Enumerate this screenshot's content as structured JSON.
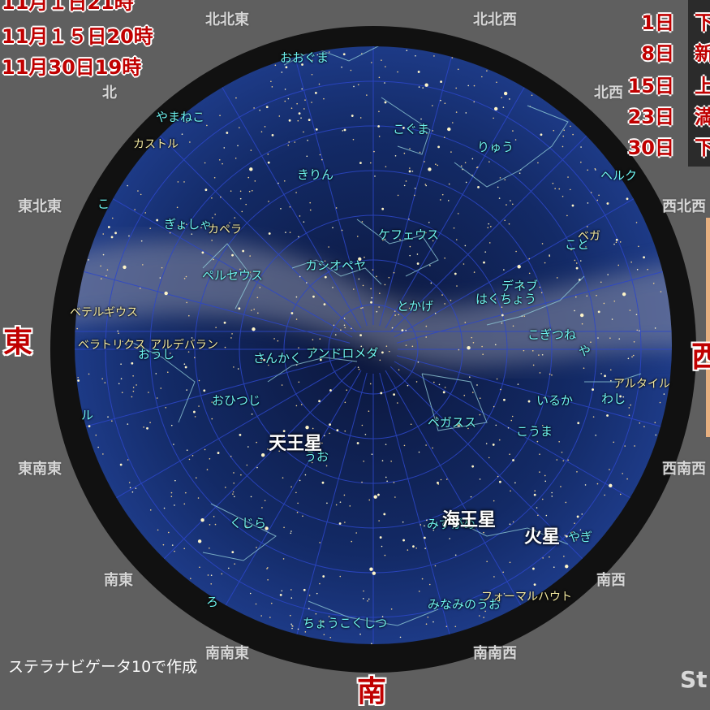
{
  "dates": [
    "11月１日21時",
    "11月１５日20時",
    "11月30日19時"
  ],
  "moon_phases": [
    {
      "day": "1日",
      "phase": "下"
    },
    {
      "day": "8日",
      "phase": "新"
    },
    {
      "day": "15日",
      "phase": "上"
    },
    {
      "day": "23日",
      "phase": "満"
    },
    {
      "day": "30日",
      "phase": "下"
    }
  ],
  "directions": {
    "north_small": "北",
    "nne": "北北東",
    "ne": "北東",
    "nnw": "北北西",
    "nw": "北西",
    "ene": "東北東",
    "wnw": "西北西",
    "east": "東",
    "west": "西",
    "ese": "東南東",
    "wsw": "西南西",
    "se": "南東",
    "sw": "南西",
    "sse": "南南東",
    "ssw": "南南西",
    "south": "南"
  },
  "constellations": [
    "おおぐま",
    "こぐま",
    "りゅう",
    "やまねこ",
    "きりん",
    "ヘルク",
    "ぎょしゃ",
    "ケフェウス",
    "こと",
    "カシオペヤ",
    "ペルセウス",
    "デネブ",
    "とかげ",
    "はくちょう",
    "こぎつね",
    "や",
    "アンドロメダ",
    "さんかく",
    "おうし",
    "おひつじ",
    "いるか",
    "わし",
    "ペガスス",
    "こうま",
    "うお",
    "くじら",
    "みずがめ",
    "やぎ",
    "ろ",
    "みなみのうお",
    "ちょうこくしつ",
    "こ",
    "ル"
  ],
  "stars": [
    "カストル",
    "カペラ",
    "ベガ",
    "ベテルギウス",
    "ベラトリクス",
    "アルデバラン",
    "アルタイル",
    "フォーマルハウト"
  ],
  "planets": {
    "uranus": "天王星",
    "neptune": "海王星",
    "mars": "火星"
  },
  "footer": "ステラナビゲータ10で作成",
  "brand": "St",
  "colors": {
    "sky": "#0f1e4a",
    "horizon_ring": "#111111",
    "grid": "#2d47c8",
    "constellation_line": "#8fc9d6",
    "label_cyan": "#6ef3f0",
    "label_red": "#c00000",
    "background": "#5f5f5f"
  }
}
